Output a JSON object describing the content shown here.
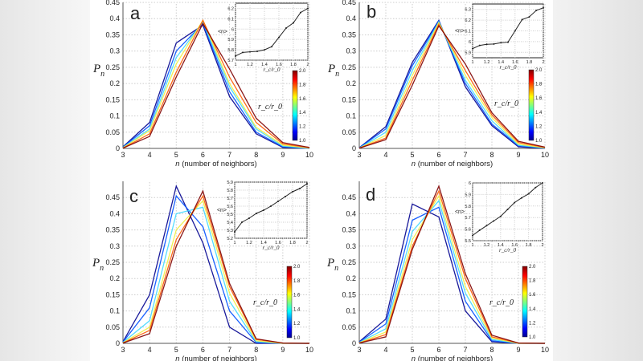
{
  "chart_data": [
    {
      "panel": "a",
      "type": "line",
      "xlabel_var": "n",
      "xlabel_rest": " (number of neighbors)",
      "ylabel": "P",
      "ylabel_sub": "n",
      "x": [
        3,
        4,
        5,
        6,
        7,
        8,
        9,
        10
      ],
      "xlim": [
        3,
        10
      ],
      "ylim": [
        0,
        0.45
      ],
      "yticks": [
        0,
        0.05,
        0.1,
        0.15,
        0.2,
        0.25,
        0.3,
        0.35,
        0.4,
        0.45
      ],
      "grid": true,
      "series": [
        {
          "rc_r0": 1.0,
          "values": [
            0.005,
            0.08,
            0.325,
            0.38,
            0.16,
            0.045,
            0.003,
            0
          ]
        },
        {
          "rc_r0": 1.2,
          "values": [
            0.004,
            0.07,
            0.3,
            0.385,
            0.175,
            0.05,
            0.005,
            0
          ]
        },
        {
          "rc_r0": 1.4,
          "values": [
            0.003,
            0.06,
            0.28,
            0.39,
            0.19,
            0.06,
            0.007,
            0
          ]
        },
        {
          "rc_r0": 1.6,
          "values": [
            0.002,
            0.055,
            0.26,
            0.395,
            0.2,
            0.065,
            0.01,
            0.001
          ]
        },
        {
          "rc_r0": 1.8,
          "values": [
            0.001,
            0.045,
            0.235,
            0.395,
            0.22,
            0.08,
            0.014,
            0.002
          ]
        },
        {
          "rc_r0": 2.0,
          "values": [
            0.001,
            0.037,
            0.22,
            0.385,
            0.245,
            0.093,
            0.018,
            0.003
          ]
        }
      ],
      "inset": {
        "type": "line",
        "ylabel": "<n>",
        "xlabel": "r_c/r_0",
        "x": [
          1,
          1.1,
          1.2,
          1.3,
          1.4,
          1.5,
          1.6,
          1.7,
          1.8,
          1.9,
          2
        ],
        "values": [
          5.74,
          5.775,
          5.78,
          5.785,
          5.8,
          5.83,
          5.92,
          6.01,
          6.06,
          6.16,
          6.2
        ],
        "xlim": [
          1,
          2
        ],
        "ylim": [
          5.7,
          6.25
        ],
        "xticks": [
          1,
          1.2,
          1.4,
          1.6,
          1.8,
          2
        ],
        "yticks": [
          5.7,
          5.8,
          5.9,
          6,
          6.1,
          6.2
        ]
      },
      "colorbar": {
        "label": "r_c/r_0",
        "ticks": [
          "1.0",
          "1.2",
          "1.4",
          "1.6",
          "1.8",
          "2.0"
        ]
      }
    },
    {
      "panel": "b",
      "type": "line",
      "xlabel_var": "n",
      "xlabel_rest": " (number of neighbors)",
      "ylabel": "P",
      "ylabel_sub": "n",
      "x": [
        3,
        4,
        5,
        6,
        7,
        8,
        9,
        10
      ],
      "xlim": [
        3,
        10
      ],
      "ylim": [
        0,
        0.45
      ],
      "yticks": [
        0,
        0.05,
        0.1,
        0.15,
        0.2,
        0.25,
        0.3,
        0.35,
        0.4,
        0.45
      ],
      "grid": true,
      "series": [
        {
          "rc_r0": 1.0,
          "values": [
            0.002,
            0.067,
            0.265,
            0.395,
            0.19,
            0.07,
            0.005,
            0
          ]
        },
        {
          "rc_r0": 1.2,
          "values": [
            0.002,
            0.06,
            0.255,
            0.393,
            0.2,
            0.075,
            0.008,
            0.001
          ]
        },
        {
          "rc_r0": 1.4,
          "values": [
            0.001,
            0.05,
            0.24,
            0.39,
            0.21,
            0.085,
            0.01,
            0.001
          ]
        },
        {
          "rc_r0": 1.6,
          "values": [
            0.001,
            0.04,
            0.225,
            0.388,
            0.225,
            0.095,
            0.013,
            0.002
          ]
        },
        {
          "rc_r0": 1.8,
          "values": [
            0.001,
            0.032,
            0.21,
            0.383,
            0.24,
            0.103,
            0.018,
            0.003
          ]
        },
        {
          "rc_r0": 2.0,
          "values": [
            0.001,
            0.027,
            0.195,
            0.378,
            0.26,
            0.11,
            0.022,
            0.004
          ]
        }
      ],
      "inset": {
        "type": "line",
        "ylabel": "<n>",
        "xlabel": "r_c/r_0",
        "x": [
          1,
          1.1,
          1.2,
          1.3,
          1.4,
          1.5,
          1.6,
          1.7,
          1.8,
          1.9,
          2
        ],
        "values": [
          5.935,
          5.965,
          5.975,
          5.978,
          5.99,
          5.995,
          6.1,
          6.205,
          6.23,
          6.29,
          6.315
        ],
        "xlim": [
          1,
          2
        ],
        "ylim": [
          5.85,
          6.35
        ],
        "xticks": [
          1,
          1.2,
          1.4,
          1.6,
          1.8,
          2
        ],
        "yticks": [
          5.9,
          6,
          6.1,
          6.2,
          6.3
        ]
      },
      "colorbar": {
        "label": "r_c/r_0",
        "ticks": [
          "1.0",
          "1.2",
          "1.4",
          "1.6",
          "1.8",
          "2.0"
        ]
      }
    },
    {
      "panel": "c",
      "type": "line",
      "xlabel_var": "n",
      "xlabel_rest": " (number of neighbors)",
      "ylabel": "P",
      "ylabel_sub": "n",
      "x": [
        3,
        4,
        5,
        6,
        7,
        8,
        9,
        10
      ],
      "xlim": [
        3,
        10
      ],
      "ylim": [
        0,
        0.5
      ],
      "yticks": [
        0,
        0.05,
        0.1,
        0.15,
        0.2,
        0.25,
        0.3,
        0.35,
        0.4,
        0.45
      ],
      "grid": true,
      "series": [
        {
          "rc_r0": 1.0,
          "values": [
            0.005,
            0.15,
            0.485,
            0.31,
            0.05,
            0,
            0,
            0
          ]
        },
        {
          "rc_r0": 1.2,
          "values": [
            0.004,
            0.11,
            0.455,
            0.36,
            0.1,
            0.003,
            0,
            0
          ]
        },
        {
          "rc_r0": 1.4,
          "values": [
            0.003,
            0.07,
            0.4,
            0.42,
            0.13,
            0.005,
            0,
            0
          ]
        },
        {
          "rc_r0": 1.6,
          "values": [
            0.002,
            0.05,
            0.35,
            0.44,
            0.155,
            0.008,
            0,
            0
          ]
        },
        {
          "rc_r0": 1.8,
          "values": [
            0.001,
            0.04,
            0.32,
            0.455,
            0.175,
            0.012,
            0.001,
            0
          ]
        },
        {
          "rc_r0": 2.0,
          "values": [
            0.001,
            0.03,
            0.3,
            0.47,
            0.185,
            0.014,
            0.001,
            0
          ]
        }
      ],
      "inset": {
        "type": "line",
        "ylabel": "<n>",
        "xlabel": "r_c/r_0",
        "x": [
          1,
          1.1,
          1.2,
          1.3,
          1.4,
          1.5,
          1.6,
          1.7,
          1.8,
          1.9,
          2
        ],
        "values": [
          5.28,
          5.4,
          5.45,
          5.51,
          5.55,
          5.6,
          5.66,
          5.72,
          5.78,
          5.82,
          5.88
        ],
        "xlim": [
          1,
          2
        ],
        "ylim": [
          5.2,
          5.9
        ],
        "xticks": [
          1,
          1.2,
          1.4,
          1.6,
          1.8,
          2
        ],
        "yticks": [
          5.2,
          5.3,
          5.4,
          5.5,
          5.6,
          5.7,
          5.8,
          5.9
        ]
      },
      "colorbar": {
        "label": "r_c/r_0",
        "ticks": [
          "1.0",
          "1.2",
          "1.4",
          "1.6",
          "1.8",
          "2.0"
        ]
      }
    },
    {
      "panel": "d",
      "type": "line",
      "xlabel_var": "n",
      "xlabel_rest": " (number of neighbors)",
      "ylabel": "P",
      "ylabel_sub": "n",
      "x": [
        3,
        4,
        5,
        6,
        7,
        8,
        9,
        10
      ],
      "xlim": [
        3,
        10
      ],
      "ylim": [
        0,
        0.5
      ],
      "yticks": [
        0,
        0.05,
        0.1,
        0.15,
        0.2,
        0.25,
        0.3,
        0.35,
        0.4,
        0.45
      ],
      "grid": true,
      "series": [
        {
          "rc_r0": 1.0,
          "values": [
            0.005,
            0.075,
            0.43,
            0.39,
            0.1,
            0.005,
            0,
            0
          ]
        },
        {
          "rc_r0": 1.2,
          "values": [
            0.004,
            0.06,
            0.38,
            0.42,
            0.13,
            0.008,
            0,
            0
          ]
        },
        {
          "rc_r0": 1.4,
          "values": [
            0.003,
            0.045,
            0.345,
            0.44,
            0.155,
            0.012,
            0,
            0
          ]
        },
        {
          "rc_r0": 1.6,
          "values": [
            0.002,
            0.035,
            0.32,
            0.455,
            0.175,
            0.016,
            0,
            0
          ]
        },
        {
          "rc_r0": 1.8,
          "values": [
            0.001,
            0.027,
            0.3,
            0.47,
            0.2,
            0.02,
            0.001,
            0
          ]
        },
        {
          "rc_r0": 2.0,
          "values": [
            0.001,
            0.02,
            0.29,
            0.485,
            0.215,
            0.025,
            0.001,
            0
          ]
        }
      ],
      "inset": {
        "type": "line",
        "ylabel": "<n>",
        "xlabel": "r_c/r_0",
        "x": [
          1,
          1.1,
          1.2,
          1.3,
          1.4,
          1.5,
          1.6,
          1.7,
          1.8,
          1.9,
          2
        ],
        "values": [
          5.545,
          5.59,
          5.63,
          5.67,
          5.71,
          5.77,
          5.83,
          5.87,
          5.905,
          5.96,
          6.0
        ],
        "xlim": [
          1,
          2
        ],
        "ylim": [
          5.5,
          6.0
        ],
        "xticks": [
          1,
          1.2,
          1.4,
          1.6,
          1.8,
          2
        ],
        "yticks": [
          5.5,
          5.6,
          5.7,
          5.8,
          5.9,
          6
        ]
      },
      "colorbar": {
        "label": "r_c/r_0",
        "ticks": [
          "1.0",
          "1.2",
          "1.4",
          "1.6",
          "1.8",
          "2.0"
        ]
      }
    }
  ],
  "colormap": [
    "#00008f",
    "#0050ff",
    "#40d8ff",
    "#f0f040",
    "#ff5a00",
    "#800000"
  ]
}
